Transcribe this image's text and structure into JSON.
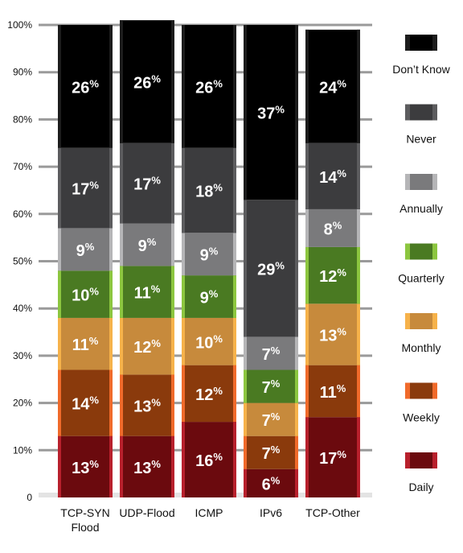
{
  "chart_data": {
    "type": "bar",
    "stacked": true,
    "categories": [
      "TCP-SYN Flood",
      "UDP-Flood",
      "ICMP",
      "IPv6",
      "TCP-Other"
    ],
    "category_lines": [
      [
        "TCP-SYN",
        "Flood"
      ],
      [
        "UDP-Flood"
      ],
      [
        "ICMP"
      ],
      [
        "IPv6"
      ],
      [
        "TCP-Other"
      ]
    ],
    "series": [
      {
        "name": "Daily",
        "color": "#6b0a0e",
        "accent": "#b8202c",
        "values": [
          13,
          13,
          16,
          6,
          17
        ]
      },
      {
        "name": "Weekly",
        "color": "#8a3a0c",
        "accent": "#f06a2a",
        "values": [
          14,
          13,
          12,
          7,
          11
        ]
      },
      {
        "name": "Monthly",
        "color": "#c78a3c",
        "accent": "#f6b24a",
        "values": [
          11,
          12,
          10,
          7,
          13
        ]
      },
      {
        "name": "Quarterly",
        "color": "#4a7a22",
        "accent": "#8cc63f",
        "values": [
          10,
          11,
          9,
          7,
          12
        ]
      },
      {
        "name": "Annually",
        "color": "#7a7a7c",
        "accent": "#b5b5b7",
        "values": [
          9,
          9,
          9,
          7,
          8
        ]
      },
      {
        "name": "Never",
        "color": "#3c3c3e",
        "accent": "#5c5c5e",
        "values": [
          17,
          17,
          18,
          29,
          14
        ]
      },
      {
        "name": "Don’t Know",
        "color": "#000000",
        "accent": "#1c1c1c",
        "values": [
          26,
          26,
          26,
          37,
          24
        ]
      }
    ],
    "y_ticks": [
      "0",
      "10%",
      "20%",
      "30%",
      "40%",
      "50%",
      "60%",
      "70%",
      "80%",
      "90%",
      "100%"
    ],
    "ylim": [
      0,
      100
    ],
    "value_suffix": "%",
    "legend_order": [
      "Don’t Know",
      "Never",
      "Annually",
      "Quarterly",
      "Monthly",
      "Weekly",
      "Daily"
    ],
    "legend_position": "right",
    "grid": true,
    "title": "",
    "xlabel": "",
    "ylabel": ""
  }
}
